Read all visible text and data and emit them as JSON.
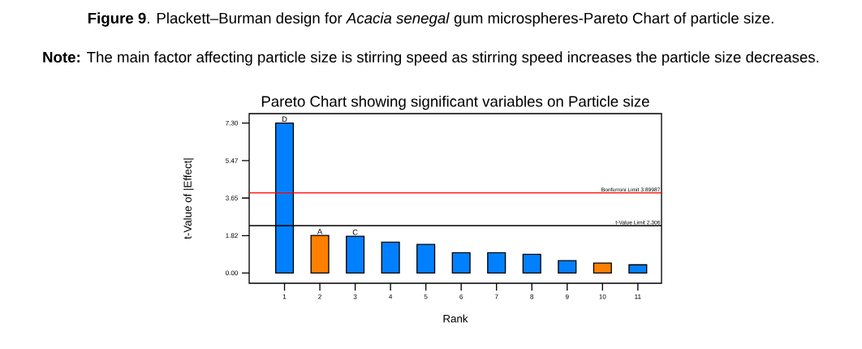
{
  "chart_data": {
    "type": "bar",
    "title": "Pareto Chart showing significant variables on Particle size",
    "xlabel": "Rank",
    "ylabel": "t-Value of |Effect|",
    "categories": [
      "1",
      "2",
      "3",
      "4",
      "5",
      "6",
      "7",
      "8",
      "9",
      "10",
      "11"
    ],
    "values": [
      7.3,
      1.83,
      1.79,
      1.5,
      1.39,
      0.99,
      0.99,
      0.91,
      0.6,
      0.48,
      0.4
    ],
    "colors": [
      "#0080ff",
      "#ff8000",
      "#0080ff",
      "#0080ff",
      "#0080ff",
      "#0080ff",
      "#0080ff",
      "#0080ff",
      "#0080ff",
      "#ff8000",
      "#0080ff"
    ],
    "ylim": [
      -0.5,
      7.76
    ],
    "yticks": [
      {
        "value": 0,
        "label": "0.00"
      },
      {
        "value": 1.82,
        "label": "1.82"
      },
      {
        "value": 3.65,
        "label": "3.65"
      },
      {
        "value": 5.47,
        "label": "5.47"
      },
      {
        "value": 7.3,
        "label": "7.30"
      }
    ],
    "ref_lines": [
      {
        "axis": "y",
        "value": 3.89987,
        "label": "Bonferroni Limit 3.89987",
        "color": "#ff0000"
      },
      {
        "axis": "y",
        "value": 2.306,
        "label": "t-Value Limit 2.306",
        "color": "#000000"
      }
    ],
    "annotations": [
      "**Figure 9**. Plackett–Burman design for *Acacia senegal* gum microspheres-Pareto Chart of particle size.",
      "**Note:** The main factor affecting particle size is stirring speed as stirring speed increases the particle size decreases.",
      {
        "text": "D",
        "x": "1",
        "y": 7.3
      },
      {
        "text": "A",
        "x": "2",
        "y": 1.83
      },
      {
        "text": "C",
        "x": "3",
        "y": 1.79
      }
    ]
  }
}
